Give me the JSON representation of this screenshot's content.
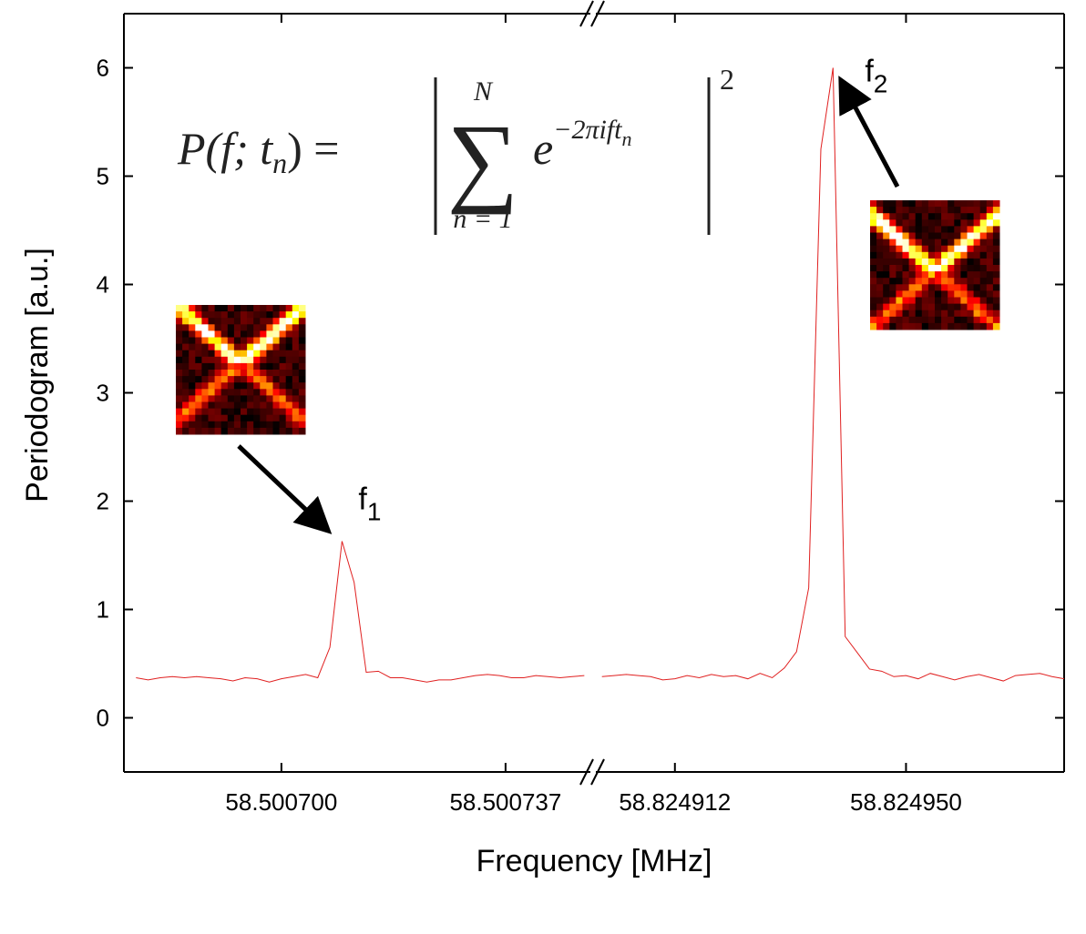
{
  "chart_data": {
    "type": "line",
    "xlabel": "Frequency [MHz]",
    "ylabel": "Periodogram [a.u.]",
    "color": "#e02020",
    "ylim": [
      -0.5,
      6.5
    ],
    "yticks": [
      0,
      1,
      2,
      3,
      4,
      5,
      6
    ],
    "panels": [
      {
        "xlim": [
          58.500674,
          58.500751
        ],
        "xticks": [
          {
            "value": 58.5007,
            "label": "58.500700"
          },
          58.500737
        ],
        "x": [
          58.500676,
          58.500678,
          58.50068,
          58.500682,
          58.500684,
          58.500686,
          58.500688,
          58.50069,
          58.500692,
          58.500694,
          58.500696,
          58.500698,
          58.5007,
          58.500702,
          58.500704,
          58.500706,
          58.500708,
          58.50071,
          58.500712,
          58.500714,
          58.500716,
          58.500718,
          58.50072,
          58.500722,
          58.500724,
          58.500726,
          58.500728,
          58.50073,
          58.500732,
          58.500734,
          58.500736,
          58.500738,
          58.50074,
          58.500742,
          58.500744,
          58.500746,
          58.500748,
          58.50075
        ],
        "values": [
          0.37,
          0.35,
          0.37,
          0.38,
          0.37,
          0.38,
          0.37,
          0.36,
          0.34,
          0.37,
          0.36,
          0.33,
          0.36,
          0.38,
          0.4,
          0.37,
          0.65,
          1.63,
          1.25,
          0.42,
          0.43,
          0.37,
          0.37,
          0.35,
          0.33,
          0.35,
          0.35,
          0.37,
          0.39,
          0.4,
          0.39,
          0.37,
          0.37,
          0.39,
          0.38,
          0.37,
          0.38,
          0.39
        ]
      },
      {
        "xlim": [
          58.824899,
          58.824976
        ],
        "xticks": [
          58.824912,
          {
            "value": 58.82495,
            "label": "58.824950"
          }
        ],
        "x": [
          58.8249,
          58.824902,
          58.824904,
          58.824906,
          58.824908,
          58.82491,
          58.824912,
          58.824914,
          58.824916,
          58.824918,
          58.82492,
          58.824922,
          58.824924,
          58.824926,
          58.824928,
          58.82493,
          58.824932,
          58.824934,
          58.824936,
          58.824938,
          58.82494,
          58.824942,
          58.824944,
          58.824946,
          58.824948,
          58.82495,
          58.824952,
          58.824954,
          58.824956,
          58.824958,
          58.82496,
          58.824962,
          58.824964,
          58.824966,
          58.824968,
          58.82497,
          58.824972,
          58.824974,
          58.824976
        ],
        "values": [
          0.38,
          0.39,
          0.4,
          0.39,
          0.38,
          0.35,
          0.36,
          0.39,
          0.37,
          0.4,
          0.38,
          0.39,
          0.36,
          0.41,
          0.37,
          0.46,
          0.61,
          1.2,
          5.25,
          6.0,
          0.75,
          0.6,
          0.45,
          0.43,
          0.38,
          0.39,
          0.36,
          0.41,
          0.38,
          0.35,
          0.38,
          0.4,
          0.37,
          0.34,
          0.39,
          0.4,
          0.41,
          0.38,
          0.36
        ]
      }
    ],
    "annotations": [
      {
        "text": "f",
        "sub": "1"
      },
      {
        "text": "f",
        "sub": "2"
      }
    ],
    "formula": {
      "lhs": "P(f; t",
      "lhs_sub": "n",
      "lhs_end": ") =",
      "sum": "∑",
      "upper": "N",
      "lower": "n = 1",
      "base": "e",
      "exponent": "−2πift",
      "exponent_sub": "n",
      "power": "2"
    }
  }
}
